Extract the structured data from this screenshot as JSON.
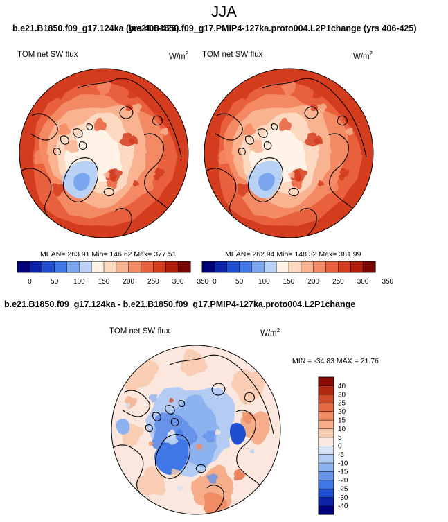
{
  "page": {
    "season": "JJA",
    "title_left": "b.e21.B1850.f09_g17.124ka (yrs 406-425)",
    "title_right": "b.e21.B1850.f09_g17.PMIP4-127ka.proto004.L2P1change (yrs 406-425)",
    "diff_title": "b.e21.B1850.f09_g17.124ka - b.e21.B1850.f09_g17.PMIP4-127ka.proto004.L2P1change"
  },
  "colors": {
    "abs_scale": [
      "#00007a",
      "#0a23a8",
      "#1f4fd0",
      "#3f78e6",
      "#7aa6f0",
      "#b8d1f5",
      "#fff2e6",
      "#fcd9c0",
      "#f9b391",
      "#f48a64",
      "#e9603d",
      "#d43c1e",
      "#b01c0a",
      "#7a0603"
    ],
    "diff_scale": [
      "#00007a",
      "#0a23a8",
      "#1f4fd0",
      "#3f78e6",
      "#6793ea",
      "#8db2f0",
      "#b4ccf3",
      "#d6e4f7",
      "#fbe7dd",
      "#f9cdb4",
      "#f5ad8a",
      "#ef8c63",
      "#e46a43",
      "#d14a27",
      "#b22913",
      "#8a0a04"
    ],
    "land": "#000000"
  },
  "chart_data": [
    {
      "type": "heatmap",
      "subtype": "polar-stereographic-map",
      "title": "TOM net SW flux",
      "units": "W/m",
      "units_sup": "2",
      "stats": {
        "mean": "263.91",
        "min": "146.62",
        "max": "377.51"
      },
      "stats_text": "MEAN= 263.91  Min= 146.62  Max= 377.51",
      "colorbar": {
        "levels": [
          0,
          25,
          50,
          75,
          100,
          125,
          150,
          175,
          200,
          225,
          250,
          275,
          300,
          325,
          350
        ],
        "tick_labels": [
          "0",
          "50",
          "100",
          "150",
          "200",
          "250",
          "300",
          "350"
        ]
      }
    },
    {
      "type": "heatmap",
      "subtype": "polar-stereographic-map",
      "title": "TOM net SW flux",
      "units": "W/m",
      "units_sup": "2",
      "stats": {
        "mean": "262.94",
        "min": "148.32",
        "max": "381.99"
      },
      "stats_text": "MEAN= 262.94  Min= 148.32  Max= 381.99",
      "colorbar": {
        "levels": [
          0,
          25,
          50,
          75,
          100,
          125,
          150,
          175,
          200,
          225,
          250,
          275,
          300,
          325,
          350
        ],
        "tick_labels": [
          "0",
          "50",
          "100",
          "150",
          "200",
          "250",
          "300",
          "350"
        ]
      }
    },
    {
      "type": "heatmap",
      "subtype": "polar-stereographic-map",
      "title": "TOM net SW flux",
      "units": "W/m",
      "units_sup": "2",
      "stats": {
        "min": "-34.83",
        "max": "21.76"
      },
      "stats_text": "MIN = -34.83 MAX =  21.76",
      "colorbar": {
        "orientation": "vertical",
        "tick_labels": [
          "40",
          "30",
          "25",
          "20",
          "15",
          "10",
          "5",
          "0",
          "-5",
          "-10",
          "-15",
          "-20",
          "-25",
          "-30",
          "-40"
        ]
      }
    }
  ]
}
